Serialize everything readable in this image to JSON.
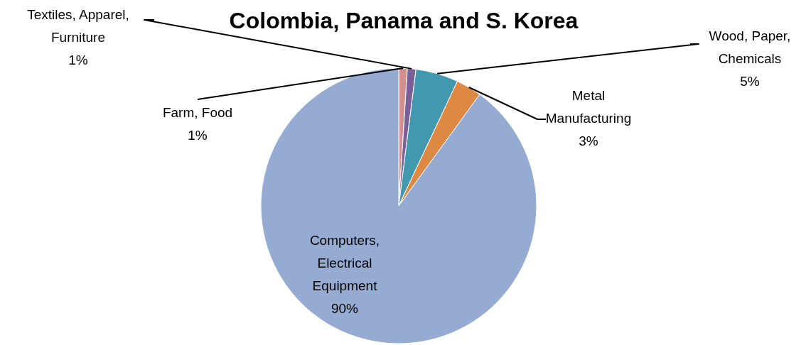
{
  "chart_data": {
    "type": "pie",
    "title": "Colombia, Panama and S. Korea",
    "categories": [
      "Farm, Food",
      "Textiles, Apparel, Furniture",
      "Wood, Paper, Chemicals",
      "Metal Manufacturing",
      "Computers, Electrical Equipment"
    ],
    "values": [
      1,
      1,
      5,
      3,
      90
    ],
    "value_labels": [
      "1%",
      "1%",
      "5%",
      "3%",
      "90%"
    ],
    "colors": [
      "#d4908e",
      "#7b5f9b",
      "#4298ae",
      "#dd8843",
      "#95abd2"
    ],
    "legend": false
  }
}
